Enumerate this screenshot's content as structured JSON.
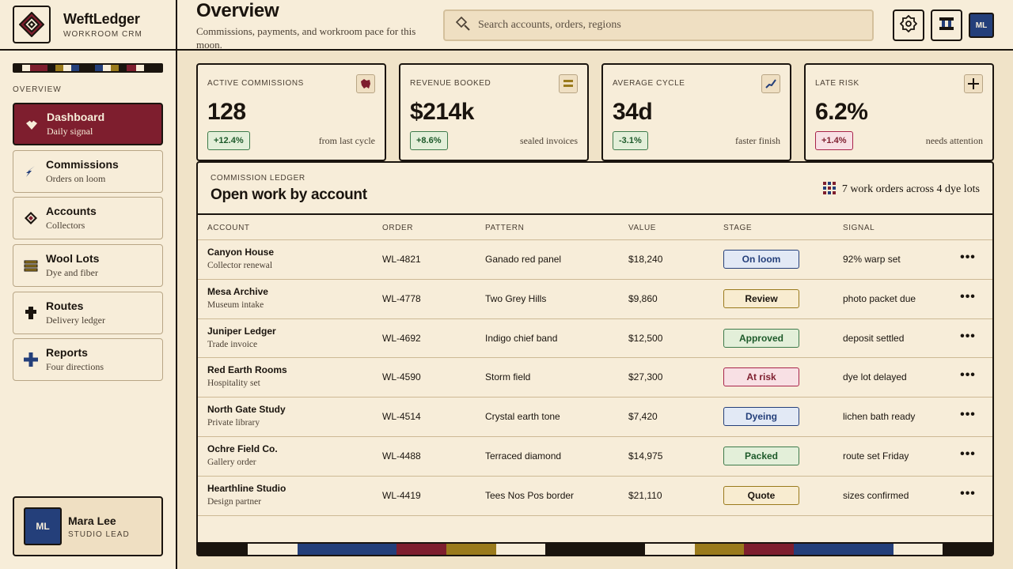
{
  "brand": {
    "name": "WeftLedger",
    "subtitle": "WORKROOM CRM"
  },
  "header": {
    "title": "Overview",
    "subtitle": "Commissions, payments, and workroom pace for this moon.",
    "search_placeholder": "Search accounts, orders, regions",
    "avatar": "ML"
  },
  "sidebar": {
    "section_label": "OVERVIEW",
    "items": [
      {
        "title": "Dashboard",
        "subtitle": "Daily signal",
        "icon": "heart-icon"
      },
      {
        "title": "Commissions",
        "subtitle": "Orders on loom",
        "icon": "feather-icon"
      },
      {
        "title": "Accounts",
        "subtitle": "Collectors",
        "icon": "diamond-icon"
      },
      {
        "title": "Wool Lots",
        "subtitle": "Dye and fiber",
        "icon": "stack-icon"
      },
      {
        "title": "Routes",
        "subtitle": "Delivery ledger",
        "icon": "route-icon"
      },
      {
        "title": "Reports",
        "subtitle": "Four directions",
        "icon": "cross-icon"
      }
    ],
    "user": {
      "initials": "ML",
      "name": "Mara Lee",
      "role": "STUDIO LEAD"
    }
  },
  "kpis": [
    {
      "label": "ACTIVE COMMISSIONS",
      "value": "128",
      "delta": "+12.4%",
      "note": "from last cycle",
      "trend": "good"
    },
    {
      "label": "REVENUE BOOKED",
      "value": "$214k",
      "delta": "+8.6%",
      "note": "sealed invoices",
      "trend": "good"
    },
    {
      "label": "AVERAGE CYCLE",
      "value": "34d",
      "delta": "-3.1%",
      "note": "faster finish",
      "trend": "good"
    },
    {
      "label": "LATE RISK",
      "value": "6.2%",
      "delta": "+1.4%",
      "note": "needs attention",
      "trend": "bad"
    }
  ],
  "ledger": {
    "kicker": "COMMISSION LEDGER",
    "title": "Open work by account",
    "summary": "7 work orders across 4 dye lots",
    "columns": [
      "ACCOUNT",
      "ORDER",
      "PATTERN",
      "VALUE",
      "STAGE",
      "SIGNAL"
    ],
    "rows": [
      {
        "account": "Canyon House",
        "sub": "Collector renewal",
        "order": "WL-4821",
        "pattern": "Ganado red panel",
        "value": "$18,240",
        "stage": "On loom",
        "signal": "92% warp set"
      },
      {
        "account": "Mesa Archive",
        "sub": "Museum intake",
        "order": "WL-4778",
        "pattern": "Two Grey Hills",
        "value": "$9,860",
        "stage": "Review",
        "signal": "photo packet due"
      },
      {
        "account": "Juniper Ledger",
        "sub": "Trade invoice",
        "order": "WL-4692",
        "pattern": "Indigo chief band",
        "value": "$12,500",
        "stage": "Approved",
        "signal": "deposit settled"
      },
      {
        "account": "Red Earth Rooms",
        "sub": "Hospitality set",
        "order": "WL-4590",
        "pattern": "Storm field",
        "value": "$27,300",
        "stage": "At risk",
        "signal": "dye lot delayed"
      },
      {
        "account": "North Gate Study",
        "sub": "Private library",
        "order": "WL-4514",
        "pattern": "Crystal earth tone",
        "value": "$7,420",
        "stage": "Dyeing",
        "signal": "lichen bath ready"
      },
      {
        "account": "Ochre Field Co.",
        "sub": "Gallery order",
        "order": "WL-4488",
        "pattern": "Terraced diamond",
        "value": "$14,975",
        "stage": "Packed",
        "signal": "route set Friday"
      },
      {
        "account": "Hearthline Studio",
        "sub": "Design partner",
        "order": "WL-4419",
        "pattern": "Tees Nos Pos border",
        "value": "$21,110",
        "stage": "Quote",
        "signal": "sizes confirmed"
      }
    ]
  },
  "colors": {
    "ink": "#1a140e",
    "paper": "#f7edd9",
    "red": "#7e1e2e",
    "indigo": "#243f7a",
    "ochre": "#9a7a1c"
  }
}
